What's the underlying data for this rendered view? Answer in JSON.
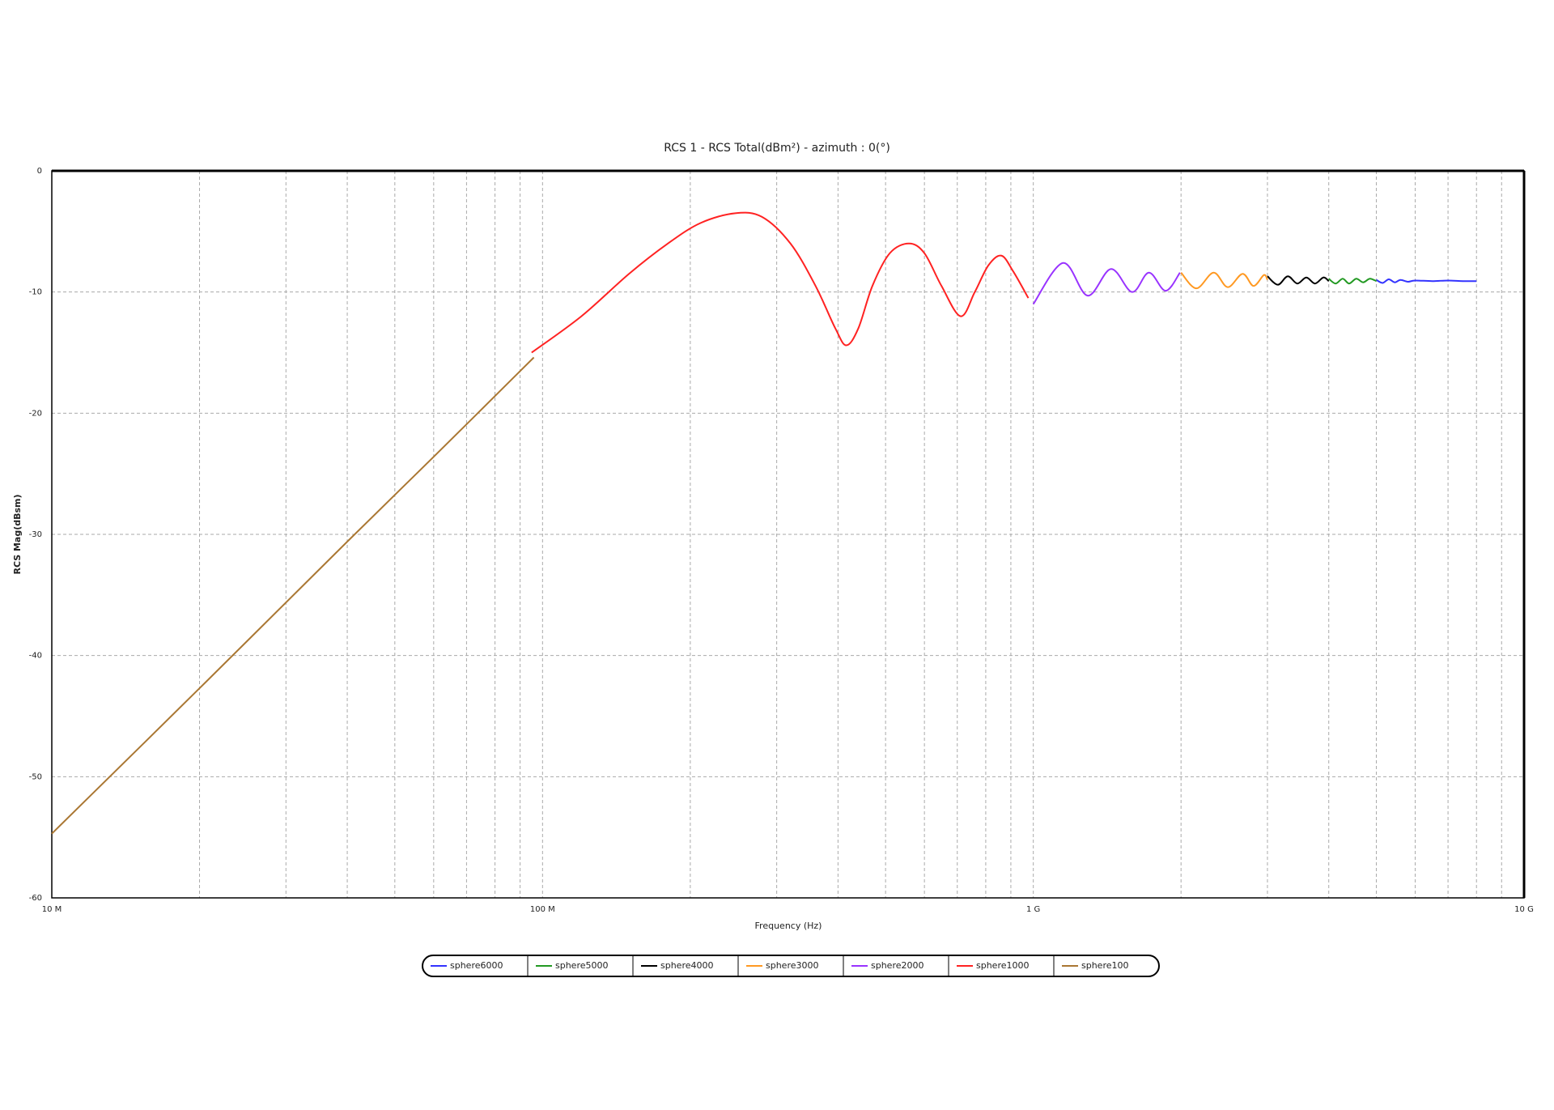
{
  "chart_data": {
    "type": "line",
    "title": "RCS 1 - RCS Total(dBm²) - azimuth : 0(°)",
    "xlabel": "Frequency (Hz)",
    "ylabel": "RCS Mag(dBsm)",
    "xscale": "log",
    "xlim": [
      10000000,
      10000000000
    ],
    "xticks": [
      {
        "value": 10000000,
        "label": "10 M"
      },
      {
        "value": 100000000,
        "label": "100 M"
      },
      {
        "value": 1000000000,
        "label": "1 G"
      },
      {
        "value": 10000000000,
        "label": "10 G"
      }
    ],
    "xminorticks": [
      20000000,
      30000000,
      40000000,
      50000000,
      60000000,
      70000000,
      80000000,
      90000000,
      200000000,
      300000000,
      400000000,
      500000000,
      600000000,
      700000000,
      800000000,
      900000000,
      2000000000,
      3000000000,
      4000000000,
      5000000000,
      6000000000,
      7000000000,
      8000000000,
      9000000000
    ],
    "ylim": [
      -60,
      0
    ],
    "yticks": [
      0,
      -10,
      -20,
      -30,
      -40,
      -50,
      -60
    ],
    "grid": true,
    "legend": "bottom",
    "series": [
      {
        "name": "sphere6000",
        "color": "#3333ff",
        "x": [
          5000000000,
          5150000000,
          5300000000,
          5450000000,
          5600000000,
          5800000000,
          6000000000,
          6500000000,
          7000000000,
          7500000000,
          8000000000
        ],
        "values": [
          -9.0,
          -9.25,
          -8.95,
          -9.2,
          -9.0,
          -9.15,
          -9.05,
          -9.1,
          -9.05,
          -9.1,
          -9.1
        ]
      },
      {
        "name": "sphere5000",
        "color": "#229922",
        "x": [
          4000000000,
          4130000000,
          4270000000,
          4400000000,
          4550000000,
          4700000000,
          4850000000,
          5000000000
        ],
        "values": [
          -8.9,
          -9.3,
          -8.9,
          -9.3,
          -8.9,
          -9.2,
          -8.9,
          -9.1
        ]
      },
      {
        "name": "sphere4000",
        "color": "#000000",
        "x": [
          3000000000,
          3150000000,
          3300000000,
          3450000000,
          3600000000,
          3750000000,
          3900000000,
          4000000000
        ],
        "values": [
          -8.7,
          -9.4,
          -8.7,
          -9.3,
          -8.8,
          -9.3,
          -8.8,
          -9.1
        ]
      },
      {
        "name": "sphere3000",
        "color": "#ff9922",
        "x": [
          2000000000,
          2150000000,
          2330000000,
          2490000000,
          2670000000,
          2810000000,
          2950000000,
          3000000000
        ],
        "values": [
          -8.4,
          -9.7,
          -8.4,
          -9.6,
          -8.5,
          -9.5,
          -8.6,
          -9.0
        ]
      },
      {
        "name": "sphere2000",
        "color": "#9933ff",
        "x": [
          1000000000,
          1150000000,
          1290000000,
          1440000000,
          1590000000,
          1720000000,
          1860000000,
          1990000000
        ],
        "values": [
          -11.0,
          -7.6,
          -10.3,
          -8.1,
          -10.0,
          -8.4,
          -9.9,
          -8.4
        ]
      },
      {
        "name": "sphere1000",
        "color": "#ff2222",
        "x": [
          95000000,
          120000000,
          150000000,
          180000000,
          210000000,
          247000000,
          280000000,
          320000000,
          360000000,
          395000000,
          416000000,
          440000000,
          470000000,
          510000000,
          558000000,
          600000000,
          650000000,
          711000000,
          760000000,
          810000000,
          861000000,
          910000000,
          977000000
        ],
        "values": [
          -15.0,
          -12.0,
          -8.5,
          -6.0,
          -4.3,
          -3.5,
          -3.8,
          -6.0,
          -9.5,
          -13.0,
          -14.4,
          -13.0,
          -9.5,
          -6.8,
          -6.0,
          -6.8,
          -9.5,
          -12.0,
          -10.0,
          -7.8,
          -7.0,
          -8.3,
          -10.5
        ]
      },
      {
        "name": "sphere100",
        "color": "#aa7733",
        "x": [
          10000000,
          20000000,
          40000000,
          60000000,
          96000000
        ],
        "values": [
          -54.7,
          -42.7,
          -30.6,
          -23.6,
          -15.4
        ]
      }
    ]
  }
}
